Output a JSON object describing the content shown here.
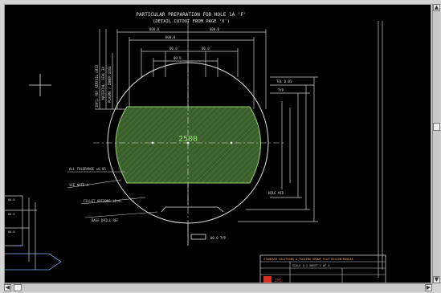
{
  "drawing": {
    "title_line1": "PARTICULAR PREPARATION FOR HOLE 1A 'F'",
    "title_line2": "(DETAIL CUTOUT FROM PAGE 'X')",
    "center_label": "2500",
    "left_notes": [
      "INFO: REF AIRFOIL GRID",
      "MATERIAL: SEAL 2X",
      "PLASMA / INNER EDGE"
    ],
    "callouts": [
      "ALL TOLERANCE ±0.05",
      "SEE NOTE A",
      "FILLET OPTIONS ±0.6",
      "BASE DRILL REF"
    ],
    "right_labels": [
      "TOL 0.05",
      "HOLE MID",
      "TYP"
    ],
    "title_block": {
      "header": "STANDARD SOLUTIONS & TOOLING GROUP FLAT DESIGN MANUAL",
      "line2": "SCALE 1:1   SHEET 1 OF 1",
      "logo_text": "IMS"
    }
  },
  "colors": {
    "background": "#000000",
    "linework": "#e8e8e8",
    "hatch_fill": "#4a7a3a",
    "accent_green": "#7fd060",
    "title_red": "#d83020"
  },
  "scrollbars": {
    "vertical": "vertical-scrollbar",
    "horizontal": "horizontal-scrollbar"
  }
}
